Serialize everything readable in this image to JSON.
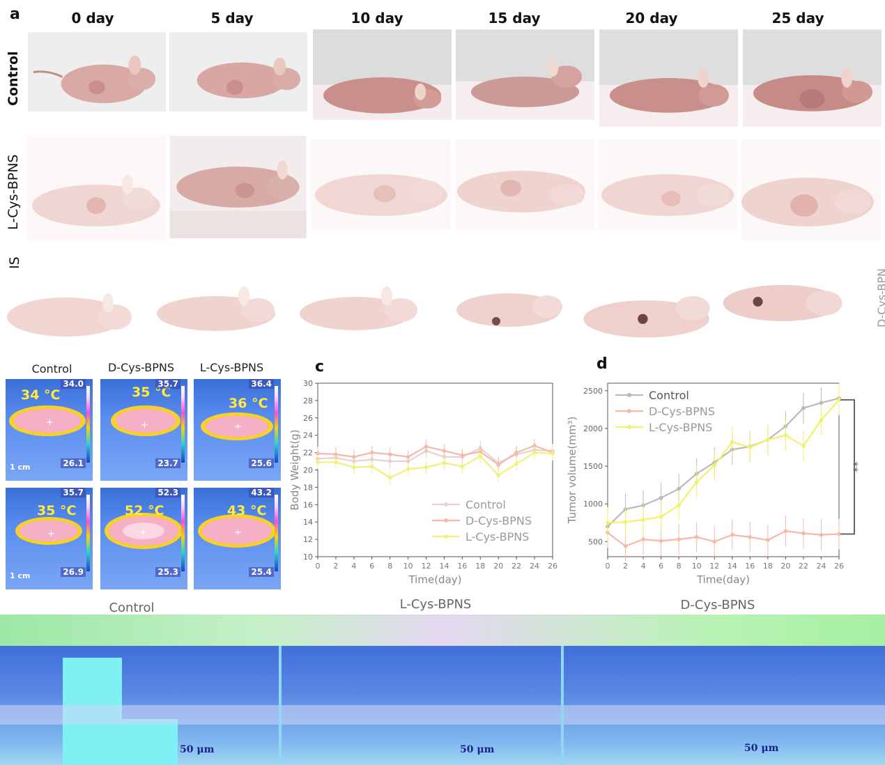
{
  "panel_a": {
    "letter": "a",
    "days": [
      "0 day",
      "5 day",
      "10 day",
      "15 day",
      "20 day",
      "25 day"
    ],
    "row_labels": [
      "Control",
      "L-Cys-BPNS",
      "IS"
    ],
    "right_fragment": "D-Cys-BPN"
  },
  "panel_b": {
    "titles": [
      "Control",
      "D-Cys-BPNS",
      "L-Cys-BPNS"
    ],
    "row1": [
      {
        "temp": "34 °C",
        "hi": "34.0",
        "lo": "26.1"
      },
      {
        "temp": "35 °C",
        "hi": "35.7",
        "lo": "23.7"
      },
      {
        "temp": "36 °C",
        "hi": "36.4",
        "lo": "25.6"
      }
    ],
    "row2": [
      {
        "temp": "35 °C",
        "hi": "35.7",
        "lo": "26.9"
      },
      {
        "temp": "52 °C",
        "hi": "52.3",
        "lo": "25.3"
      },
      {
        "temp": "43 °C",
        "hi": "43.2",
        "lo": "25.4"
      }
    ],
    "scale_bar": "1 cm"
  },
  "panel_c": {
    "letter": "c"
  },
  "panel_d": {
    "letter": "d",
    "significance": "**"
  },
  "panel_e": {
    "titles": [
      "Control",
      "L-Cys-BPNS",
      "D-Cys-BPNS"
    ],
    "scale_bar": "50 μm"
  },
  "chart_data": [
    {
      "type": "line",
      "xlabel": "Time(day)",
      "ylabel": "Body Weight(g)",
      "xlim": [
        0,
        26
      ],
      "ylim": [
        10,
        30
      ],
      "x": [
        0,
        2,
        4,
        6,
        8,
        10,
        12,
        14,
        16,
        18,
        20,
        22,
        24,
        26
      ],
      "xticks": [
        "0",
        "2",
        "4",
        "6",
        "8",
        "10",
        "12",
        "14",
        "16",
        "18",
        "20",
        "22",
        "24",
        "26"
      ],
      "yticks": [
        "10",
        "12",
        "14",
        "16",
        "18",
        "20",
        "22",
        "24",
        "26",
        "28",
        "30"
      ],
      "legend": "bottom-right",
      "series": [
        {
          "name": "Control",
          "color": "#e8d0d0",
          "values": [
            21.3,
            21.4,
            21.0,
            21.2,
            21.0,
            21.0,
            22.2,
            21.5,
            21.5,
            22.5,
            20.8,
            21.8,
            22.3,
            22.2
          ]
        },
        {
          "name": "D-Cys-BPNS",
          "color": "#f5b9aa",
          "values": [
            21.9,
            21.8,
            21.5,
            22.0,
            21.8,
            21.5,
            22.7,
            22.2,
            21.7,
            22.1,
            20.6,
            22.0,
            22.8,
            22.0
          ]
        },
        {
          "name": "L-Cys-BPNS",
          "color": "#f3f07a",
          "values": [
            20.9,
            20.9,
            20.3,
            20.4,
            19.1,
            20.1,
            20.3,
            20.8,
            20.4,
            21.6,
            19.4,
            20.7,
            22.0,
            21.9
          ]
        }
      ]
    },
    {
      "type": "line",
      "xlabel": "Time(day)",
      "ylabel": "Tumor volume(mm³)",
      "xlim": [
        0,
        26
      ],
      "ylim": [
        300,
        2600
      ],
      "x": [
        0,
        2,
        4,
        6,
        8,
        10,
        12,
        14,
        16,
        18,
        20,
        22,
        24,
        26
      ],
      "xticks": [
        "0",
        "2",
        "4",
        "6",
        "8",
        "10",
        "12",
        "14",
        "16",
        "18",
        "20",
        "22",
        "24",
        "26"
      ],
      "yticks": [
        "500",
        "1000",
        "1500",
        "2000",
        "2500"
      ],
      "legend": "top-left",
      "series": [
        {
          "name": "Control",
          "color": "#b9b9b9",
          "values": [
            700,
            930,
            980,
            1080,
            1200,
            1400,
            1550,
            1720,
            1760,
            1850,
            2030,
            2270,
            2340,
            2400
          ]
        },
        {
          "name": "D-Cys-BPNS",
          "color": "#f6b8aa",
          "values": [
            620,
            440,
            530,
            510,
            530,
            560,
            500,
            590,
            560,
            520,
            640,
            610,
            590,
            600
          ]
        },
        {
          "name": "L-Cys-BPNS",
          "color": "#f1f16a",
          "values": [
            750,
            760,
            790,
            830,
            980,
            1290,
            1510,
            1820,
            1750,
            1850,
            1910,
            1770,
            2110,
            2380
          ]
        }
      ]
    }
  ]
}
